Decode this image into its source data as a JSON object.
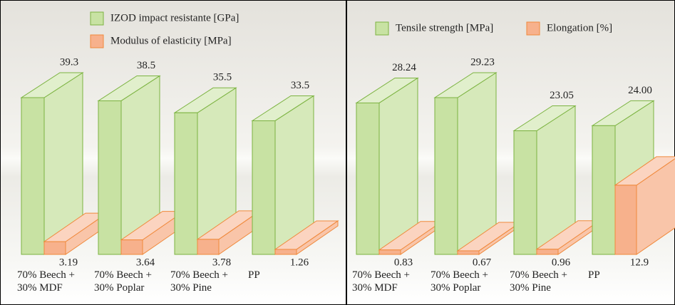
{
  "chart_data": [
    {
      "type": "bar3d",
      "categories": [
        "70% Beech + 30% MDF",
        "70% Beech + 30% Poplar",
        "70% Beech + 30% Pine",
        "PP"
      ],
      "series": [
        {
          "name": "IZOD impact resistante [GPa]",
          "color": "#c8e2a3",
          "values": [
            39.3,
            38.5,
            35.5,
            33.5
          ]
        },
        {
          "name": "Modulus of elasticity [MPa]",
          "color": "#f7b18c",
          "values": [
            3.19,
            3.64,
            3.78,
            1.26
          ]
        }
      ]
    },
    {
      "type": "bar3d",
      "categories": [
        "70% Beech + 30% MDF",
        "70% Beech + 30% Poplar",
        "70% Beech + 30% Pine",
        "PP"
      ],
      "series": [
        {
          "name": "Tensile strength [MPa]",
          "color": "#c8e2a3",
          "values": [
            28.24,
            29.23,
            23.05,
            24.0
          ],
          "value_labels": [
            "28.24",
            "29.23",
            "23.05",
            "24.00"
          ]
        },
        {
          "name": "Elongation [%]",
          "color": "#f7b18c",
          "values": [
            0.83,
            0.67,
            0.96,
            12.9
          ]
        }
      ]
    }
  ]
}
